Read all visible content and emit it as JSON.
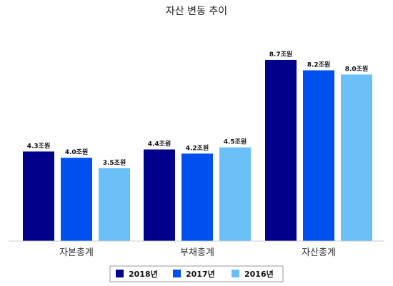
{
  "chart_data": {
    "type": "bar",
    "title": "자산 변동 추이",
    "categories": [
      "자본총계",
      "부채총계",
      "자산총계"
    ],
    "unit_suffix": "조원",
    "ylim": [
      0,
      10
    ],
    "grid": false,
    "legend_position": "bottom",
    "series": [
      {
        "name": "2018년",
        "color": "#00008b",
        "values": [
          4.3,
          4.4,
          8.7
        ],
        "labels": [
          "4.3조원",
          "4.4조원",
          "8.7조원"
        ]
      },
      {
        "name": "2017년",
        "color": "#0050f0",
        "values": [
          4.0,
          4.2,
          8.2
        ],
        "labels": [
          "4.0조원",
          "4.2조원",
          "8.2조원"
        ]
      },
      {
        "name": "2016년",
        "color": "#6cc0f8",
        "values": [
          3.5,
          4.5,
          8.0
        ],
        "labels": [
          "3.5조원",
          "4.5조원",
          "8.0조원"
        ]
      }
    ]
  }
}
